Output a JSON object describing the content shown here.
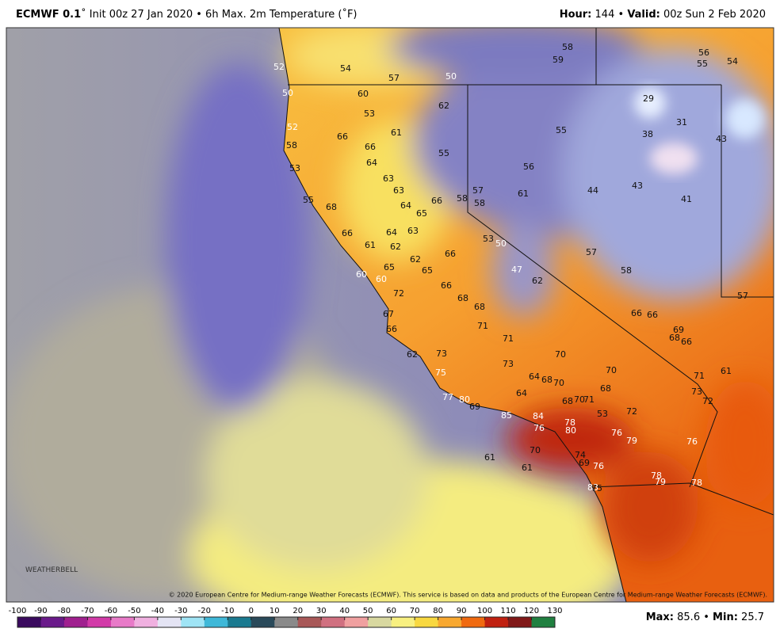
{
  "header": {
    "title_bold": "ECMWF 0.1",
    "title_rest": "˚ Init 00z 27 Jan 2020 • 6h Max. 2m Temperature (˚F)",
    "hour_label": "Hour:",
    "hour": "144",
    "separator": "•",
    "valid_label": "Valid:",
    "valid": "00z Sun 2 Feb 2020"
  },
  "map": {
    "labels": [
      52,
      54,
      57,
      50,
      58,
      59,
      56,
      55,
      54,
      50,
      60,
      62,
      29,
      53,
      31,
      52,
      66,
      61,
      55,
      38,
      43,
      58,
      66,
      55,
      64,
      56,
      53,
      63,
      63,
      57,
      61,
      44,
      43,
      66,
      58,
      58,
      41,
      55,
      68,
      64,
      65,
      66,
      64,
      63,
      53,
      50,
      61,
      62,
      66,
      57,
      62,
      65,
      65,
      47,
      58,
      60,
      60,
      62,
      66,
      72,
      57,
      68,
      68,
      67,
      66,
      66,
      69,
      71,
      66,
      68,
      66,
      71,
      70,
      73,
      62,
      73,
      75,
      70,
      71,
      61,
      64,
      68,
      70,
      68,
      64,
      77,
      80,
      73,
      72,
      68,
      70,
      71,
      69,
      72,
      53,
      85,
      84,
      78,
      76,
      80,
      76,
      79,
      76,
      70,
      74,
      69,
      61,
      76,
      61,
      78,
      79,
      78,
      83,
      75
    ],
    "logo": "WEATHERBELL",
    "copyright": "© 2020 European Centre for Medium-range Weather Forecasts (ECMWF). This service is based on data and products of the European Centre for Medium-range Weather Forecasts (ECMWF)."
  },
  "colorbar": {
    "ticks": [
      -100,
      -90,
      -80,
      -70,
      -60,
      -50,
      -40,
      -30,
      -20,
      -10,
      0,
      10,
      20,
      30,
      40,
      50,
      60,
      70,
      80,
      90,
      100,
      110,
      120,
      130
    ],
    "colors": [
      "#3a0a5e",
      "#6a1a8a",
      "#a0208f",
      "#d23aa8",
      "#e87ac8",
      "#f0b0e0",
      "#e4e4f4",
      "#9fe4f5",
      "#3fb8d8",
      "#1a7a90",
      "#2a4a5a",
      "#8a8a8a",
      "#a85858",
      "#d07080",
      "#f0a0a0",
      "#d8d8a0",
      "#f8f080",
      "#f8d840",
      "#f8a830",
      "#f06a10",
      "#c02010",
      "#801818",
      "#208040"
    ]
  },
  "footer": {
    "max_label": "Max:",
    "max": 85.6,
    "separator": "•",
    "min_label": "Min:",
    "min": 25.7
  }
}
